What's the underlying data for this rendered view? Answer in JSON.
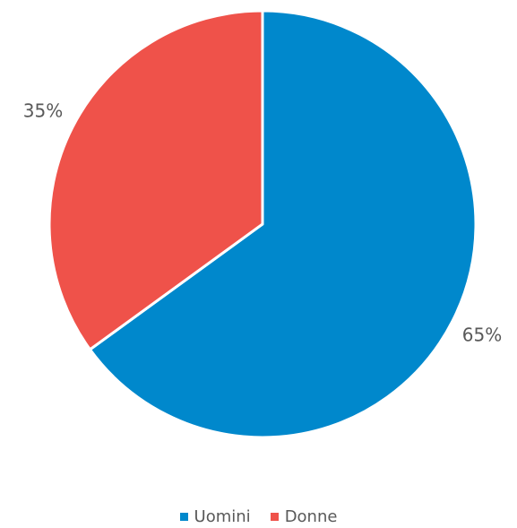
{
  "chart_data": {
    "type": "pie",
    "title": "",
    "start_angle_deg": 0,
    "direction": "clockwise",
    "legend_position": "bottom",
    "slices": [
      {
        "label": "Uomini",
        "value": 65,
        "percent_label": "65%",
        "color": "#0088CC"
      },
      {
        "label": "Donne",
        "value": 35,
        "percent_label": "35%",
        "color": "#EF524A"
      }
    ]
  }
}
